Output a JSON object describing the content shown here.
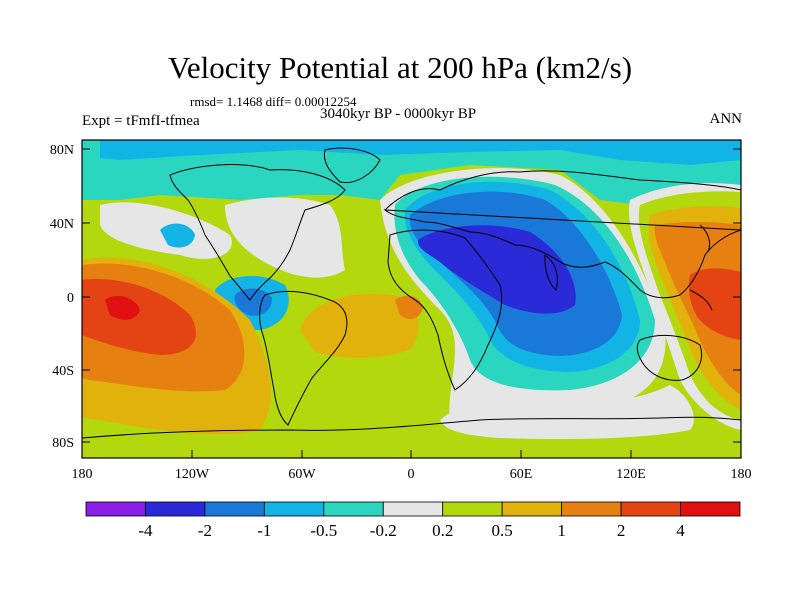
{
  "title": "Velocity Potential at 200 hPa (km2/s)",
  "stats": "rmsd= 1.1468 diff= 0.00012254",
  "left_label": "Expt = tFmfI-tfmea",
  "center_label": "3040kyr BP - 0000kyr BP",
  "right_label": "ANN",
  "lat_ticks": [
    "80N",
    "40N",
    "0",
    "40S",
    "80S"
  ],
  "lon_ticks": [
    "180",
    "120W",
    "60W",
    "0",
    "60E",
    "120E",
    "180"
  ],
  "colorbar": {
    "labels": [
      "-4",
      "-2",
      "-1",
      "-0.5",
      "-0.2",
      "0.2",
      "0.5",
      "1",
      "2",
      "4"
    ],
    "colors": [
      "#8a1de8",
      "#2a2ad8",
      "#1a78d8",
      "#12b4e6",
      "#2ad6c0",
      "#e6e6e6",
      "#b4d80e",
      "#e2b20c",
      "#e68010",
      "#e44414",
      "#e01010"
    ]
  },
  "palette": {
    "land_outline": "#000000",
    "frame": "#000000"
  }
}
